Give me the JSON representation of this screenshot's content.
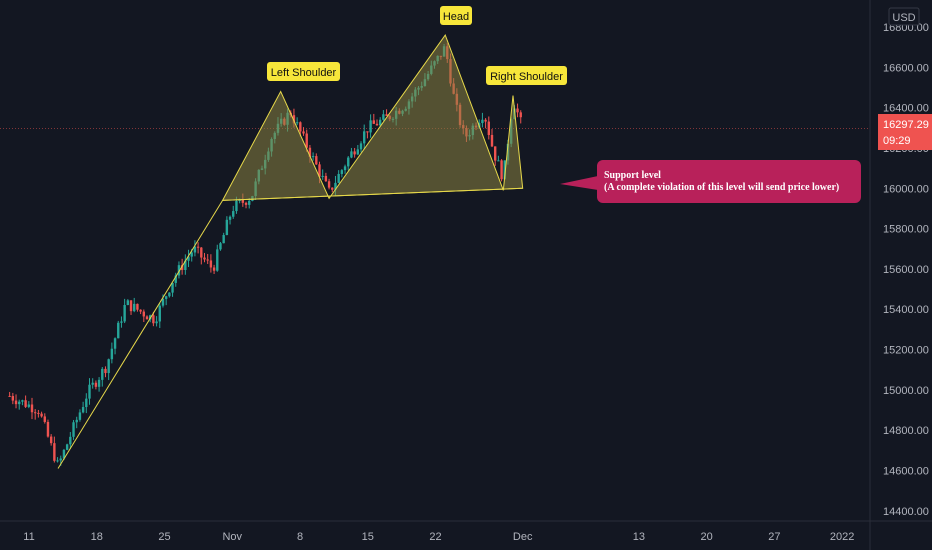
{
  "currency": "USD",
  "price_badge": {
    "price": "16297.29",
    "countdown": "09:29"
  },
  "colors": {
    "background": "#131722",
    "up": "#26a69a",
    "down": "#ef5350",
    "pattern_line": "#e6d84a",
    "pattern_fill": "#8a8240",
    "label_bg": "#f7e63a",
    "callout_bg": "#b8215a",
    "price_line": "#ef5350"
  },
  "annotations": {
    "left_shoulder": "Left Shoulder",
    "head": "Head",
    "right_shoulder": "Right Shoulder",
    "callout_line1": "Support level",
    "callout_line2": "(A complete violation of this level will send price lower)"
  },
  "chart_data": {
    "type": "candlestick",
    "title": "",
    "xlabel": "",
    "ylabel": "",
    "ylim": [
      14300,
      16800
    ],
    "y_ticks": [
      "16800.00",
      "16600.00",
      "16400.00",
      "16200.00",
      "16000.00",
      "15800.00",
      "15600.00",
      "15400.00",
      "15200.00",
      "15000.00",
      "14800.00",
      "14600.00",
      "14400.00"
    ],
    "x_tick_labels": [
      "11",
      "18",
      "25",
      "Nov",
      "8",
      "15",
      "22",
      "Dec",
      "13",
      "20",
      "27",
      "2022"
    ],
    "current_price": 16297.29,
    "pattern": "head-and-shoulders",
    "pattern_points": [
      {
        "name": "neckline-start",
        "date": "Oct 31",
        "value": 15940
      },
      {
        "name": "left-shoulder",
        "date": "Nov 6",
        "value": 16480
      },
      {
        "name": "neck-low-1",
        "date": "Nov 11",
        "value": 15950
      },
      {
        "name": "head",
        "date": "Nov 23",
        "value": 16760
      },
      {
        "name": "neck-low-2",
        "date": "Nov 29",
        "value": 15990
      },
      {
        "name": "right-shoulder",
        "date": "Nov 30",
        "value": 16460
      },
      {
        "name": "neckline-end",
        "date": "Dec 1",
        "value": 16000
      }
    ],
    "trendline": {
      "from_value": 14610,
      "to_value": 15940
    },
    "price_path": [
      {
        "date": "Oct 9",
        "close": 14970
      },
      {
        "date": "Oct 12",
        "close": 14900
      },
      {
        "date": "Oct 14",
        "close": 14620
      },
      {
        "date": "Oct 17",
        "close": 14980
      },
      {
        "date": "Oct 19",
        "close": 15120
      },
      {
        "date": "Oct 21",
        "close": 15430
      },
      {
        "date": "Oct 24",
        "close": 15350
      },
      {
        "date": "Oct 26",
        "close": 15560
      },
      {
        "date": "Oct 28",
        "close": 15700
      },
      {
        "date": "Oct 30",
        "close": 15600
      },
      {
        "date": "Nov 1",
        "close": 15900
      },
      {
        "date": "Nov 3",
        "close": 15960
      },
      {
        "date": "Nov 5",
        "close": 16250
      },
      {
        "date": "Nov 7",
        "close": 16380
      },
      {
        "date": "Nov 9",
        "close": 16180
      },
      {
        "date": "Nov 11",
        "close": 15980
      },
      {
        "date": "Nov 13",
        "close": 16150
      },
      {
        "date": "Nov 15",
        "close": 16300
      },
      {
        "date": "Nov 17",
        "close": 16350
      },
      {
        "date": "Nov 19",
        "close": 16420
      },
      {
        "date": "Nov 21",
        "close": 16550
      },
      {
        "date": "Nov 23",
        "close": 16700
      },
      {
        "date": "Nov 24",
        "close": 16420
      },
      {
        "date": "Nov 25",
        "close": 16250
      },
      {
        "date": "Nov 27",
        "close": 16380
      },
      {
        "date": "Nov 28",
        "close": 16180
      },
      {
        "date": "Nov 29",
        "close": 16050
      },
      {
        "date": "Nov 30",
        "close": 16440
      },
      {
        "date": "Dec 1",
        "close": 16297
      }
    ]
  }
}
